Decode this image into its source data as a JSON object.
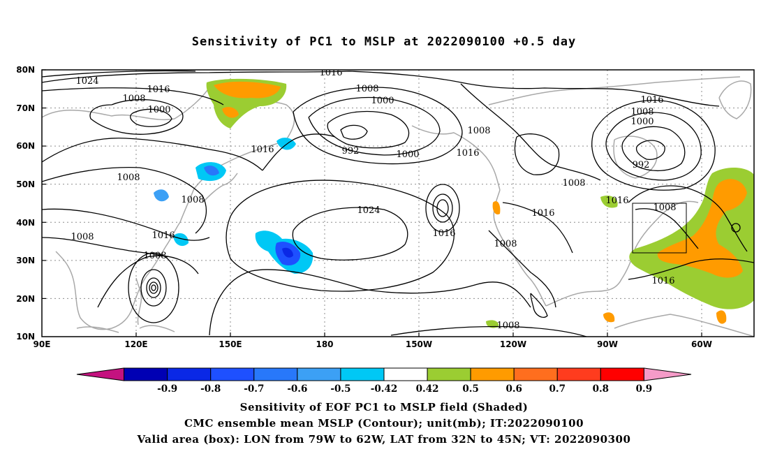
{
  "title": "Sensitivity of PC1 to MSLP at 2022090100 +0.5 day",
  "map": {
    "lat_labels": [
      "80N",
      "70N",
      "60N",
      "50N",
      "40N",
      "30N",
      "20N",
      "10N"
    ],
    "lon_labels": [
      "90E",
      "120E",
      "150E",
      "180",
      "150W",
      "120W",
      "90W",
      "60W"
    ],
    "valid_box": {
      "lon_from": "79W",
      "lon_to": "62W",
      "lat_from": "32N",
      "lat_to": "45N"
    }
  },
  "contour_labels": [
    {
      "text": "1024"
    },
    {
      "text": "1016"
    },
    {
      "text": "1016"
    },
    {
      "text": "1008"
    },
    {
      "text": "1008"
    },
    {
      "text": "1000"
    },
    {
      "text": "1000"
    },
    {
      "text": "1016"
    },
    {
      "text": "1008"
    },
    {
      "text": "1008"
    },
    {
      "text": "1000"
    },
    {
      "text": "992"
    },
    {
      "text": "1000"
    },
    {
      "text": "1008"
    },
    {
      "text": "1016"
    },
    {
      "text": "1016"
    },
    {
      "text": "992"
    },
    {
      "text": "1008"
    },
    {
      "text": "1008"
    },
    {
      "text": "1008"
    },
    {
      "text": "1024"
    },
    {
      "text": "1016"
    },
    {
      "text": "1016"
    },
    {
      "text": "1016"
    },
    {
      "text": "1008"
    },
    {
      "text": "1016"
    },
    {
      "text": "1016"
    },
    {
      "text": "1008"
    },
    {
      "text": "1008"
    },
    {
      "text": "1008"
    }
  ],
  "colorbar": {
    "labels": [
      "-0.9",
      "-0.8",
      "-0.7",
      "-0.6",
      "-0.5",
      "-0.42",
      "0.42",
      "0.5",
      "0.6",
      "0.7",
      "0.8",
      "0.9"
    ],
    "colors": [
      "#c4127f",
      "#0000b4",
      "#0a28e6",
      "#1e50ff",
      "#2878fa",
      "#3ca0f5",
      "#00c8f5",
      "#ffffff",
      "#9bcd32",
      "#ff9b00",
      "#ff6e1e",
      "#ff3c1e",
      "#ff0000",
      "#f59bc8"
    ]
  },
  "captions": {
    "line1": "Sensitivity of EOF PC1 to MSLP field (Shaded)",
    "line2": "CMC ensemble mean MSLP (Contour); unit(mb); IT:2022090100",
    "line3": "Valid area (box): LON from 79W to 62W, LAT from 32N to 45N; VT: 2022090300"
  }
}
